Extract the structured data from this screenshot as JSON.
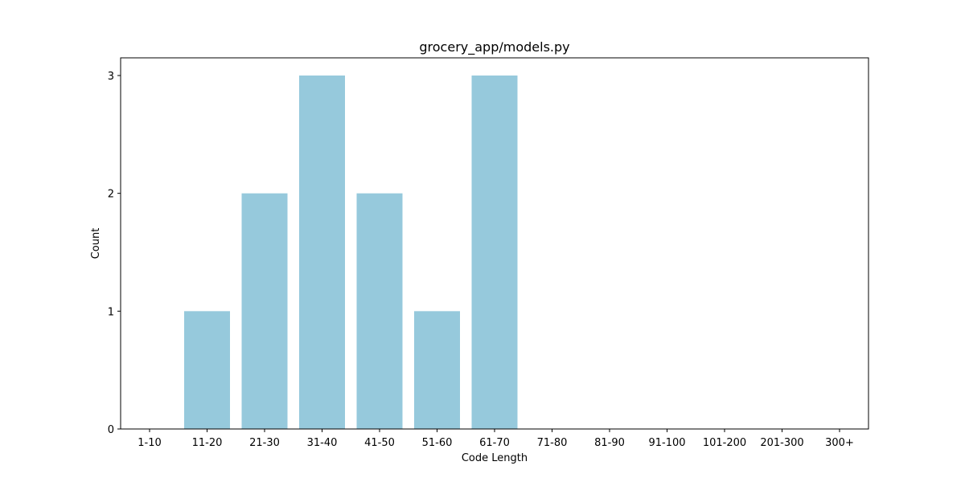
{
  "chart_data": {
    "type": "bar",
    "title": "grocery_app/models.py",
    "xlabel": "Code Length",
    "ylabel": "Count",
    "categories": [
      "1-10",
      "11-20",
      "21-30",
      "31-40",
      "41-50",
      "51-60",
      "61-70",
      "71-80",
      "81-90",
      "91-100",
      "101-200",
      "201-300",
      "300+"
    ],
    "values": [
      0,
      1,
      2,
      3,
      2,
      1,
      3,
      0,
      0,
      0,
      0,
      0,
      0
    ],
    "ylim": [
      0,
      3.15
    ],
    "yticks": [
      "0",
      "1",
      "2",
      "3"
    ],
    "bar_color": "#96c9dc",
    "grid": false,
    "legend": "none"
  }
}
